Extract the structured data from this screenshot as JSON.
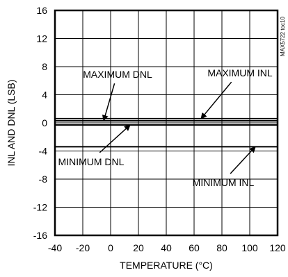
{
  "chart_data": {
    "type": "line",
    "title": "",
    "xlabel": "TEMPERATURE (°C)",
    "ylabel": "INL AND DNL (LSB)",
    "watermark": "MAX5722 toc10",
    "xlim": [
      -40,
      120
    ],
    "ylim": [
      -16,
      16
    ],
    "x_ticks": [
      "-40",
      "-20",
      "0",
      "20",
      "40",
      "60",
      "80",
      "100",
      "120"
    ],
    "y_ticks": [
      "16",
      "12",
      "8",
      "4",
      "0",
      "-4",
      "-8",
      "-12",
      "-16"
    ],
    "grid": true,
    "series": [
      {
        "name": "MAXIMUM INL",
        "x": [
          -40,
          120
        ],
        "y": [
          0.6,
          0.6
        ]
      },
      {
        "name": "MAXIMUM DNL",
        "x": [
          -40,
          120
        ],
        "y": [
          0.3,
          0.3
        ]
      },
      {
        "name": "MINIMUM DNL",
        "x": [
          -40,
          120
        ],
        "y": [
          -0.3,
          -0.3
        ]
      },
      {
        "name": "MINIMUM INL",
        "x": [
          -40,
          120
        ],
        "y": [
          -3.4,
          -3.4
        ]
      }
    ],
    "annotations": [
      {
        "text": "MAXIMUM DNL",
        "series": 1,
        "label_x": 5,
        "label_y": 6.4,
        "point_x": -5,
        "point_y": 0.3
      },
      {
        "text": "MAXIMUM INL",
        "series": 0,
        "label_x": 93,
        "label_y": 6.6,
        "point_x": 65,
        "point_y": 0.6
      },
      {
        "text": "MINIMUM DNL",
        "series": 2,
        "label_x": -14,
        "label_y": -6.0,
        "point_x": 14,
        "point_y": -0.3
      },
      {
        "text": "MINIMUM INL",
        "series": 3,
        "label_x": 81,
        "label_y": -9.0,
        "point_x": 104,
        "point_y": -3.4
      }
    ]
  }
}
